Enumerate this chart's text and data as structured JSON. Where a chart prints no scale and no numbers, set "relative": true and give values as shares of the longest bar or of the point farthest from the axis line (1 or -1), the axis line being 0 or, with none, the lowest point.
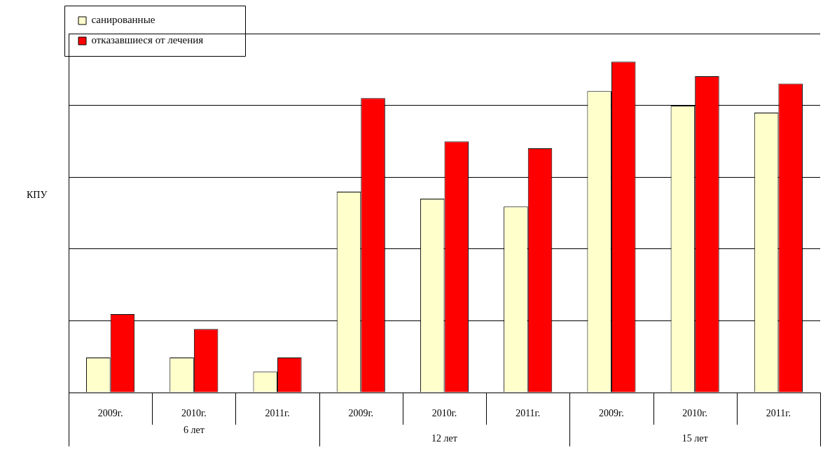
{
  "chart_data": {
    "type": "bar",
    "relative": true,
    "ylabel": "КПУ",
    "categories": [
      "2009г.",
      "2010г.",
      "2011г.",
      "2009г.",
      "2010г.",
      "2011г.",
      "2009г.",
      "2010г.",
      "2011г."
    ],
    "annotations": [
      "6 лет",
      "12 лет",
      "15 лет"
    ],
    "series": [
      {
        "name": "санированные",
        "color": "#ffffcc",
        "values": [
          0.106,
          0.106,
          0.063,
          0.607,
          0.586,
          0.562,
          0.911,
          0.867,
          0.846
        ]
      },
      {
        "name": "отказавшиеся от лечения",
        "color": "#ff0000",
        "values": [
          0.237,
          0.192,
          0.106,
          0.89,
          0.759,
          0.738,
          1,
          0.956,
          0.934
        ]
      }
    ],
    "grid": "y",
    "legend": "top left"
  }
}
